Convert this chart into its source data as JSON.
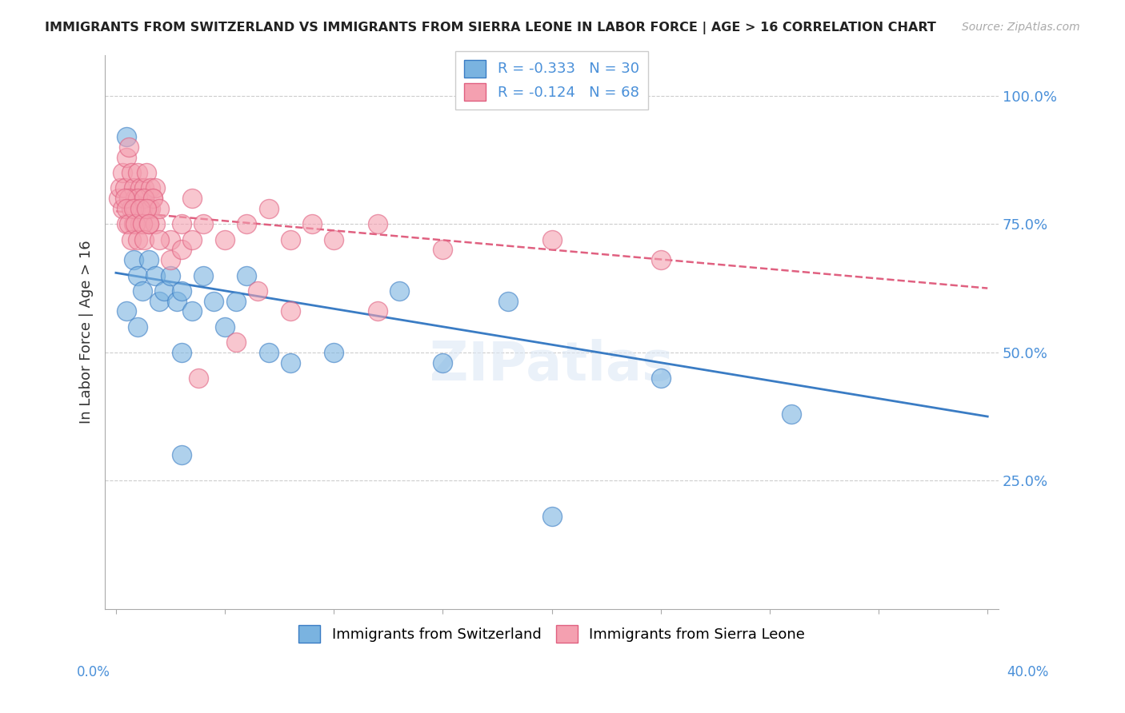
{
  "title": "IMMIGRANTS FROM SWITZERLAND VS IMMIGRANTS FROM SIERRA LEONE IN LABOR FORCE | AGE > 16 CORRELATION CHART",
  "source": "Source: ZipAtlas.com",
  "ylabel": "In Labor Force | Age > 16",
  "legend1_label": "Immigrants from Switzerland",
  "legend2_label": "Immigrants from Sierra Leone",
  "legend1_text": "R = -0.333   N = 30",
  "legend2_text": "R = -0.124   N = 68",
  "blue_color": "#7ab3e0",
  "pink_color": "#f4a0b0",
  "blue_line_color": "#3a7cc4",
  "pink_line_color": "#e06080",
  "background_color": "#ffffff",
  "xlim": [
    -0.005,
    0.405
  ],
  "ylim": [
    0.0,
    1.08
  ],
  "blue_trend_x": [
    0.0,
    0.4
  ],
  "blue_trend_y": [
    0.655,
    0.375
  ],
  "pink_trend_x": [
    0.0,
    0.4
  ],
  "pink_trend_y": [
    0.775,
    0.625
  ],
  "swiss_x": [
    0.005,
    0.008,
    0.01,
    0.012,
    0.015,
    0.018,
    0.02,
    0.022,
    0.025,
    0.028,
    0.03,
    0.035,
    0.04,
    0.045,
    0.05,
    0.055,
    0.06,
    0.07,
    0.08,
    0.1,
    0.13,
    0.15,
    0.18,
    0.005,
    0.01,
    0.03,
    0.25,
    0.31,
    0.03,
    0.2
  ],
  "swiss_y": [
    0.92,
    0.68,
    0.65,
    0.62,
    0.68,
    0.65,
    0.6,
    0.62,
    0.65,
    0.6,
    0.62,
    0.58,
    0.65,
    0.6,
    0.55,
    0.6,
    0.65,
    0.5,
    0.48,
    0.5,
    0.62,
    0.48,
    0.6,
    0.58,
    0.55,
    0.5,
    0.45,
    0.38,
    0.3,
    0.18
  ],
  "sierra_x": [
    0.001,
    0.002,
    0.003,
    0.004,
    0.005,
    0.006,
    0.007,
    0.008,
    0.009,
    0.01,
    0.011,
    0.012,
    0.013,
    0.014,
    0.015,
    0.016,
    0.017,
    0.018,
    0.003,
    0.005,
    0.006,
    0.007,
    0.008,
    0.009,
    0.01,
    0.011,
    0.012,
    0.013,
    0.015,
    0.016,
    0.017,
    0.018,
    0.02,
    0.025,
    0.03,
    0.035,
    0.04,
    0.05,
    0.06,
    0.07,
    0.08,
    0.09,
    0.1,
    0.12,
    0.15,
    0.2,
    0.25,
    0.004,
    0.005,
    0.006,
    0.007,
    0.008,
    0.009,
    0.01,
    0.011,
    0.012,
    0.013,
    0.014,
    0.015,
    0.02,
    0.025,
    0.03,
    0.035,
    0.08,
    0.12,
    0.038,
    0.055,
    0.065
  ],
  "sierra_y": [
    0.8,
    0.82,
    0.85,
    0.82,
    0.88,
    0.9,
    0.85,
    0.82,
    0.8,
    0.85,
    0.82,
    0.8,
    0.82,
    0.85,
    0.78,
    0.82,
    0.8,
    0.82,
    0.78,
    0.75,
    0.8,
    0.78,
    0.75,
    0.78,
    0.8,
    0.75,
    0.78,
    0.8,
    0.75,
    0.78,
    0.8,
    0.75,
    0.78,
    0.72,
    0.75,
    0.8,
    0.75,
    0.72,
    0.75,
    0.78,
    0.72,
    0.75,
    0.72,
    0.75,
    0.7,
    0.72,
    0.68,
    0.8,
    0.78,
    0.75,
    0.72,
    0.78,
    0.75,
    0.72,
    0.78,
    0.75,
    0.72,
    0.78,
    0.75,
    0.72,
    0.68,
    0.7,
    0.72,
    0.58,
    0.58,
    0.45,
    0.52,
    0.62
  ]
}
